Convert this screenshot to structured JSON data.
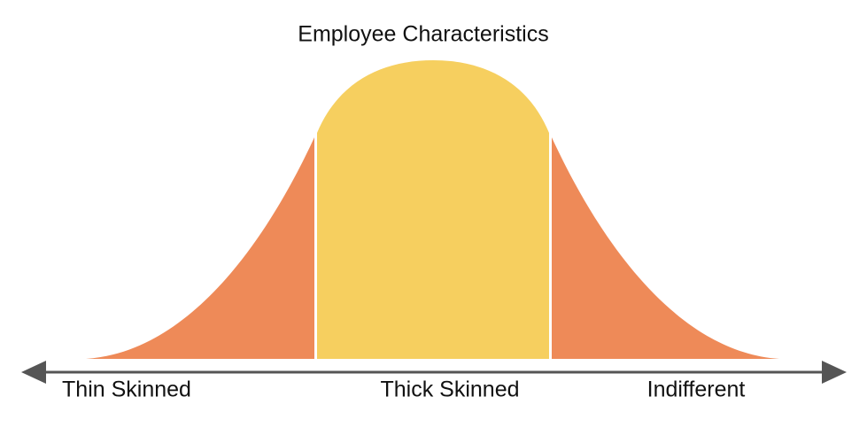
{
  "title": "Employee Characteristics",
  "labels": [
    "Thin Skinned",
    "Thick Skinned",
    "Indifferent"
  ]
}
